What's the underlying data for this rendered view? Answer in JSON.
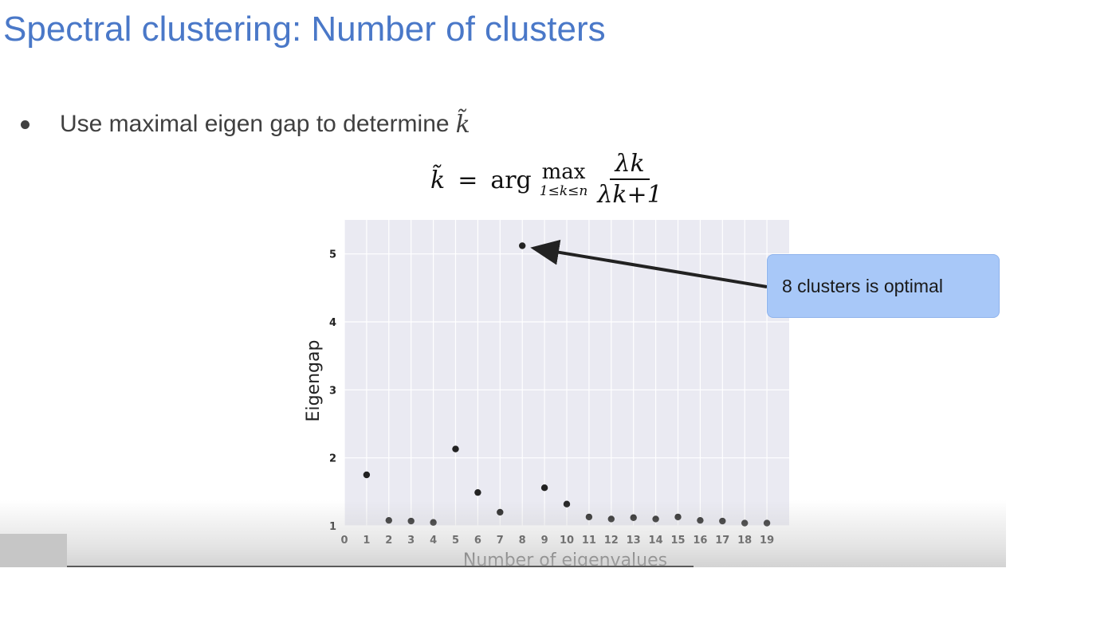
{
  "slide": {
    "title": "Spectral clustering: Number of clusters",
    "bullet": {
      "text": "Use maximal eigen gap to determine",
      "symbol": "k̃"
    },
    "formula": {
      "lhs": "k̃",
      "equals": "=",
      "arg": "arg",
      "max": "max",
      "max_subscript": "1≤k≤n",
      "numerator": "λk",
      "denominator": "λk+1"
    },
    "callout": {
      "text": "8 clusters is optimal",
      "color": "#a8c8f8"
    }
  },
  "chart_data": {
    "type": "scatter",
    "title": "",
    "xlabel": "Number of eigenvalues",
    "ylabel": "Eigengap",
    "xlim": [
      0,
      20
    ],
    "ylim": [
      1,
      5.5
    ],
    "x_ticks": [
      0,
      1,
      2,
      3,
      4,
      5,
      6,
      7,
      8,
      9,
      10,
      11,
      12,
      13,
      14,
      15,
      16,
      17,
      18,
      19
    ],
    "y_ticks": [
      1,
      2,
      3,
      4,
      5
    ],
    "grid": true,
    "background_color": "#eaeaf2",
    "point_color": "#222222",
    "points": [
      {
        "x": 1,
        "y": 1.75
      },
      {
        "x": 2,
        "y": 1.08
      },
      {
        "x": 3,
        "y": 1.07
      },
      {
        "x": 4,
        "y": 1.05
      },
      {
        "x": 5,
        "y": 2.13
      },
      {
        "x": 6,
        "y": 1.49
      },
      {
        "x": 7,
        "y": 1.2
      },
      {
        "x": 8,
        "y": 5.12
      },
      {
        "x": 9,
        "y": 1.56
      },
      {
        "x": 10,
        "y": 1.32
      },
      {
        "x": 11,
        "y": 1.13
      },
      {
        "x": 12,
        "y": 1.1
      },
      {
        "x": 13,
        "y": 1.12
      },
      {
        "x": 14,
        "y": 1.1
      },
      {
        "x": 15,
        "y": 1.13
      },
      {
        "x": 16,
        "y": 1.08
      },
      {
        "x": 17,
        "y": 1.07
      },
      {
        "x": 18,
        "y": 1.04
      },
      {
        "x": 19,
        "y": 1.04
      }
    ],
    "annotation": {
      "text": "8 clusters is optimal",
      "target": {
        "x": 8,
        "y": 5.12
      }
    }
  }
}
